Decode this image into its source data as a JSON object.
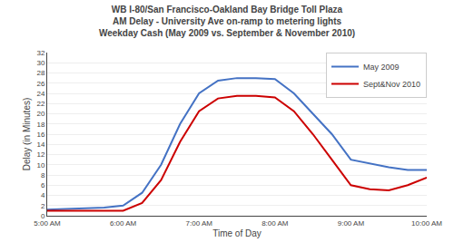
{
  "chart_data": {
    "type": "line",
    "title": "WB I-80/San Francisco-Oakland Bay Bridge Toll Plaza\nAM Delay - University Ave on-ramp to metering lights\nWeekday Cash (May 2009 vs. September & November 2010)",
    "xlabel": "Time of Day",
    "ylabel": "Delay (in Minutes)",
    "x": [
      5.0,
      5.25,
      5.5,
      5.75,
      6.0,
      6.25,
      6.5,
      6.75,
      7.0,
      7.25,
      7.5,
      7.75,
      8.0,
      8.25,
      8.5,
      8.75,
      9.0,
      9.25,
      9.5,
      9.75,
      10.0
    ],
    "series": [
      {
        "name": "May 2009",
        "color": "#4472C4",
        "values": [
          1.2,
          1.3,
          1.4,
          1.6,
          2.0,
          4.5,
          10.0,
          18.0,
          24.0,
          26.5,
          27.0,
          27.0,
          26.8,
          24.0,
          20.0,
          16.0,
          11.0,
          10.2,
          9.5,
          9.0,
          9.0
        ]
      },
      {
        "name": "Sept&Nov 2010",
        "color": "#CC0000",
        "values": [
          1.0,
          1.0,
          1.0,
          0.9,
          1.0,
          2.5,
          7.0,
          14.5,
          20.5,
          23.0,
          23.5,
          23.5,
          23.2,
          20.5,
          16.0,
          11.0,
          6.0,
          5.2,
          5.0,
          6.0,
          7.5
        ]
      }
    ],
    "xlim": [
      5.0,
      10.0
    ],
    "xticks": [
      {
        "value": 5.0,
        "label": "5:00 AM"
      },
      {
        "value": 6.0,
        "label": "6:00 AM"
      },
      {
        "value": 7.0,
        "label": "7:00 AM"
      },
      {
        "value": 8.0,
        "label": "8:00 AM"
      },
      {
        "value": 9.0,
        "label": "9:00 AM"
      },
      {
        "value": 10.0,
        "label": "10:00 AM"
      }
    ],
    "ylim": [
      0,
      32
    ],
    "yticks": [
      0,
      2,
      4,
      6,
      8,
      10,
      12,
      14,
      16,
      18,
      20,
      22,
      24,
      26,
      28,
      30,
      32
    ],
    "grid": true,
    "legend": "upper right"
  }
}
